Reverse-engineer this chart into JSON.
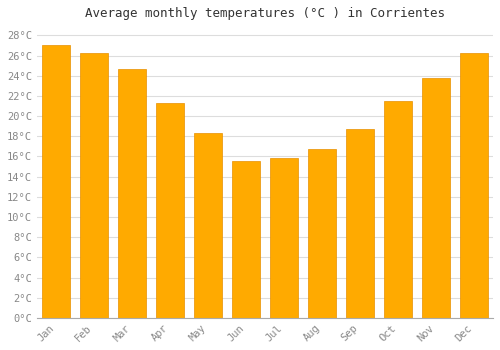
{
  "title": "Average monthly temperatures (°C ) in Corrientes",
  "months": [
    "Jan",
    "Feb",
    "Mar",
    "Apr",
    "May",
    "Jun",
    "Jul",
    "Aug",
    "Sep",
    "Oct",
    "Nov",
    "Dec"
  ],
  "values": [
    27.0,
    26.3,
    24.7,
    21.3,
    18.3,
    15.5,
    15.8,
    16.7,
    18.7,
    21.5,
    23.8,
    26.3
  ],
  "bar_color": "#FFAA00",
  "bar_edge_color": "#E89000",
  "background_color": "#FFFFFF",
  "plot_bg_color": "#FFFFFF",
  "grid_color": "#DDDDDD",
  "title_color": "#333333",
  "tick_color": "#888888",
  "ylim": [
    0,
    29
  ],
  "yticks": [
    0,
    2,
    4,
    6,
    8,
    10,
    12,
    14,
    16,
    18,
    20,
    22,
    24,
    26,
    28
  ]
}
